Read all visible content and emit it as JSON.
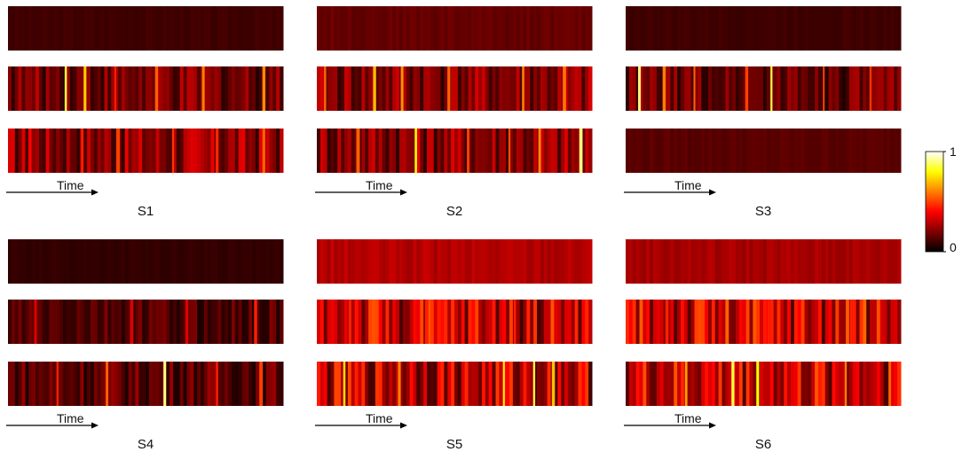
{
  "figure": {
    "time_label": "Time",
    "colorbar": {
      "min_label": "0",
      "max_label": "1",
      "colormap": "hot"
    }
  },
  "chart_data": [
    {
      "type": "heatmap",
      "title": "S1",
      "xlabel": "Time",
      "rows": [
        {
          "level": 0.1,
          "spikes": []
        },
        {
          "level": 0.18,
          "spikes": [
            [
              0.21,
              0.85
            ],
            [
              0.28,
              0.72
            ],
            [
              0.39,
              0.45
            ],
            [
              0.54,
              0.55
            ],
            [
              0.71,
              0.6
            ],
            [
              0.93,
              0.62
            ]
          ]
        },
        {
          "level": 0.22,
          "spikes": [
            [
              0.08,
              0.4
            ],
            [
              0.27,
              0.45
            ],
            [
              0.4,
              0.5
            ],
            [
              0.6,
              0.48
            ],
            [
              0.76,
              0.46
            ],
            [
              0.93,
              0.55
            ]
          ]
        }
      ]
    },
    {
      "type": "heatmap",
      "title": "S2",
      "xlabel": "Time",
      "rows": [
        {
          "level": 0.16,
          "spikes": []
        },
        {
          "level": 0.2,
          "spikes": [
            [
              0.03,
              0.55
            ],
            [
              0.21,
              0.7
            ],
            [
              0.31,
              0.62
            ],
            [
              0.48,
              0.55
            ],
            [
              0.75,
              0.6
            ],
            [
              0.9,
              0.58
            ]
          ]
        },
        {
          "level": 0.22,
          "spikes": [
            [
              0.15,
              0.55
            ],
            [
              0.36,
              0.8
            ],
            [
              0.55,
              0.5
            ],
            [
              0.7,
              0.52
            ],
            [
              0.81,
              0.62
            ],
            [
              0.96,
              0.9
            ]
          ]
        }
      ]
    },
    {
      "type": "heatmap",
      "title": "S3",
      "xlabel": "Time",
      "rows": [
        {
          "level": 0.1,
          "spikes": []
        },
        {
          "level": 0.16,
          "spikes": [
            [
              0.05,
              0.9
            ],
            [
              0.14,
              0.6
            ],
            [
              0.25,
              0.55
            ],
            [
              0.44,
              0.5
            ],
            [
              0.53,
              0.85
            ],
            [
              0.72,
              0.5
            ],
            [
              0.89,
              0.48
            ]
          ]
        },
        {
          "level": 0.14,
          "spikes": []
        }
      ]
    },
    {
      "type": "heatmap",
      "title": "S4",
      "xlabel": "Time",
      "rows": [
        {
          "level": 0.08,
          "spikes": []
        },
        {
          "level": 0.12,
          "spikes": [
            [
              0.1,
              0.35
            ],
            [
              0.45,
              0.35
            ],
            [
              0.65,
              0.35
            ],
            [
              0.9,
              0.45
            ]
          ]
        },
        {
          "level": 0.15,
          "spikes": [
            [
              0.18,
              0.45
            ],
            [
              0.36,
              0.55
            ],
            [
              0.57,
              0.9
            ],
            [
              0.76,
              0.45
            ],
            [
              0.92,
              0.5
            ]
          ]
        }
      ]
    },
    {
      "type": "heatmap",
      "title": "S5",
      "xlabel": "Time",
      "rows": [
        {
          "level": 0.28,
          "spikes": []
        },
        {
          "level": 0.32,
          "spikes": [
            [
              0.12,
              0.45
            ],
            [
              0.4,
              0.45
            ],
            [
              0.72,
              0.45
            ]
          ]
        },
        {
          "level": 0.3,
          "spikes": [
            [
              0.1,
              0.75
            ],
            [
              0.3,
              0.6
            ],
            [
              0.68,
              0.8
            ],
            [
              0.79,
              0.85
            ],
            [
              0.86,
              0.7
            ]
          ]
        }
      ]
    },
    {
      "type": "heatmap",
      "title": "S6",
      "xlabel": "Time",
      "rows": [
        {
          "level": 0.26,
          "spikes": []
        },
        {
          "level": 0.33,
          "spikes": [
            [
              0.15,
              0.45
            ],
            [
              0.52,
              0.45
            ],
            [
              0.82,
              0.45
            ]
          ]
        },
        {
          "level": 0.32,
          "spikes": [
            [
              0.22,
              0.65
            ],
            [
              0.39,
              0.85
            ],
            [
              0.48,
              0.8
            ],
            [
              0.8,
              0.6
            ],
            [
              0.96,
              0.55
            ]
          ]
        }
      ]
    }
  ]
}
